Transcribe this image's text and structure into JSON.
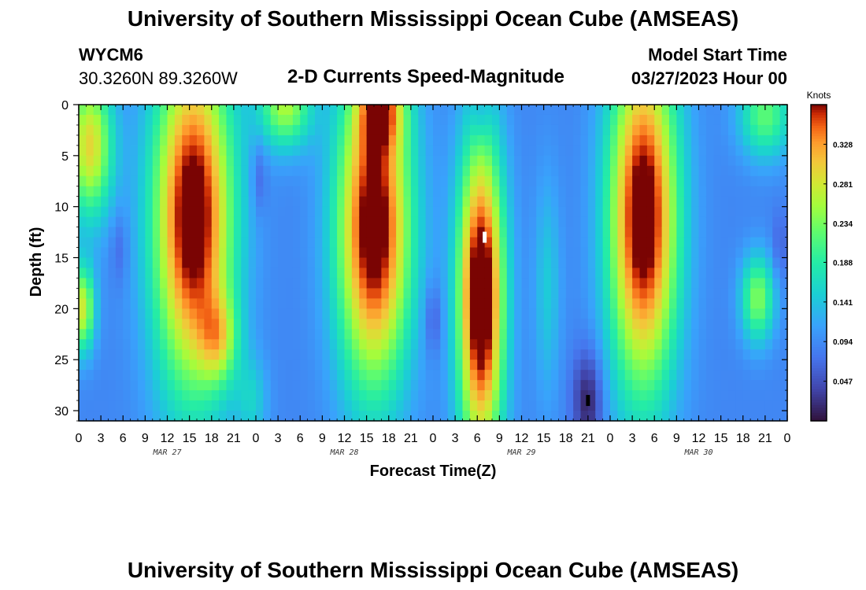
{
  "header": {
    "title_top": "University of Southern Mississippi Ocean Cube (AMSEAS)",
    "title_bottom": "University of Southern Mississippi Ocean Cube (AMSEAS)",
    "station_id": "WYCM6",
    "station_coords": "30.3260N  89.3260W",
    "plot_subtitle": "2-D Currents Speed-Magnitude",
    "model_start_label": "Model Start Time",
    "model_start_value": "03/27/2023 Hour 00"
  },
  "chart_data": {
    "type": "heatmap",
    "title": "2-D Currents Speed-Magnitude",
    "xlabel": "Forecast Time(Z)",
    "ylabel": "Depth (ft)",
    "x_range_hours": [
      0,
      96
    ],
    "y_range_ft": [
      0,
      31
    ],
    "y_inverted": true,
    "x_tick_labels": [
      "0",
      "3",
      "6",
      "9",
      "12",
      "15",
      "18",
      "21",
      "0",
      "3",
      "6",
      "9",
      "12",
      "15",
      "18",
      "21",
      "0",
      "3",
      "6",
      "9",
      "12",
      "15",
      "18",
      "21",
      "0",
      "3",
      "6",
      "9",
      "12",
      "15",
      "18",
      "21",
      "0"
    ],
    "y_ticks": [
      0,
      5,
      10,
      15,
      20,
      25,
      30
    ],
    "date_labels": [
      {
        "text": "MAR 27",
        "hour": 12
      },
      {
        "text": "MAR 28",
        "hour": 36
      },
      {
        "text": "MAR 29",
        "hour": 60
      },
      {
        "text": "MAR 30",
        "hour": 84
      }
    ],
    "colorbar": {
      "units": "Knots",
      "ticks": [
        "0.328",
        "0.281",
        "0.234",
        "0.188",
        "0.141",
        "0.094",
        "0.047"
      ],
      "range": [
        0.0,
        0.375
      ]
    },
    "markers": [
      {
        "hour": 55,
        "depth": 13,
        "color": "#ffffff"
      },
      {
        "hour": 69,
        "depth": 29,
        "color": "#000000"
      }
    ],
    "regions_description": "High speed (>0.3 kn) columns approx. hours 10-21 (Mar 27), 35-45 (Mar 28), 52-57 depth 9-31 (Mar 29), 72-81 (Mar 29-30); low speed (<0.05 kn) near hour 68-70 at depth 25-31."
  }
}
